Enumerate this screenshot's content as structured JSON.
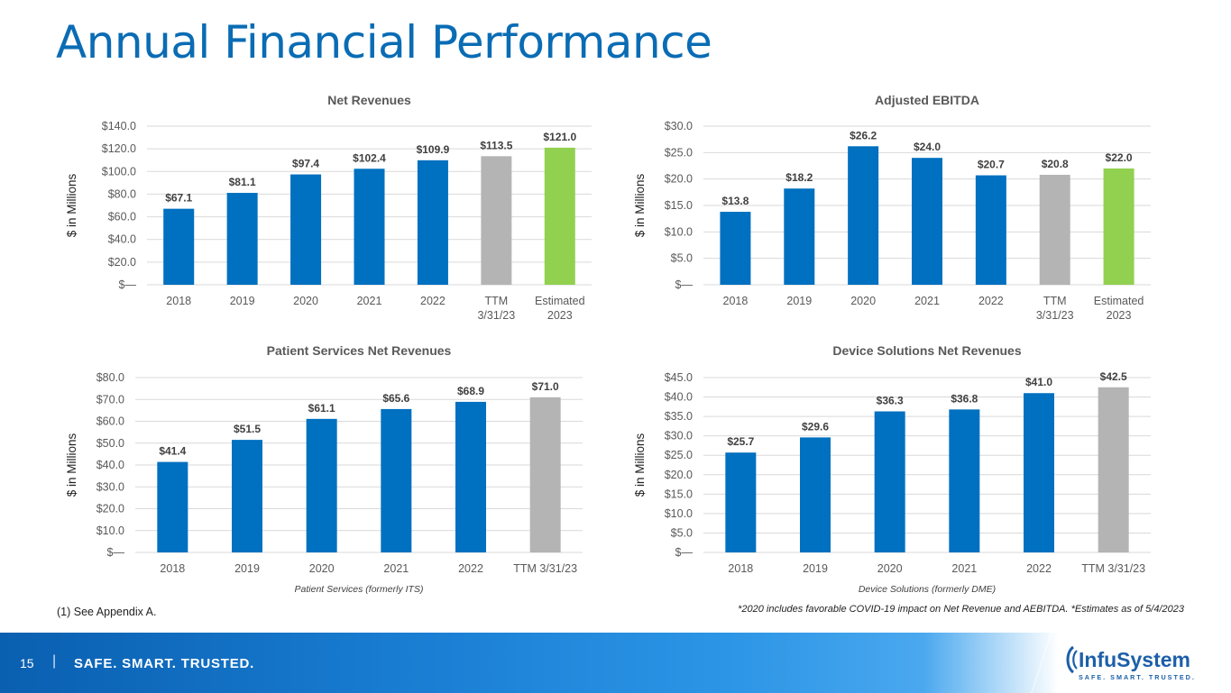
{
  "page": {
    "title": "Annual Financial Performance",
    "footnote_left": "(1) See Appendix A.",
    "footnote_right": "*2020 includes favorable COVID-19 impact on Net Revenue and AEBITDA.  *Estimates as of 5/4/2023",
    "footer": {
      "page_number": "15",
      "divider": "|",
      "slogan": "SAFE. SMART. TRUSTED."
    },
    "logo": {
      "brand": "InfuSystem",
      "tagline": "SAFE. SMART. TRUSTED.",
      "icon": "infusystem-logo-icon"
    }
  },
  "colors": {
    "blue": "#0070c0",
    "gray": "#b4b4b4",
    "green": "#92d050",
    "title_blue": "#0a6cb4"
  },
  "chart_data": [
    {
      "type": "bar",
      "title": "Net Revenues",
      "ylabel": "$ in Millions",
      "xnote": "",
      "categories": [
        [
          "2018"
        ],
        [
          "2019"
        ],
        [
          "2020"
        ],
        [
          "2021"
        ],
        [
          "2022"
        ],
        [
          "TTM",
          "3/31/23"
        ],
        [
          "Estimated",
          "2023"
        ]
      ],
      "values": [
        67.1,
        81.1,
        97.4,
        102.4,
        109.9,
        113.5,
        121.0
      ],
      "labels": [
        "$67.1",
        "$81.1",
        "$97.4",
        "$102.4",
        "$109.9",
        "$113.5",
        "$121.0"
      ],
      "bar_colors": [
        "blue",
        "blue",
        "blue",
        "blue",
        "blue",
        "gray",
        "green"
      ],
      "yticks": [
        0,
        20,
        40,
        60,
        80,
        100,
        120,
        140
      ],
      "ytick_labels": [
        "$—",
        "$20.0",
        "$40.0",
        "$60.0",
        "$80.0",
        "$100.0",
        "$120.0",
        "$140.0"
      ],
      "ylim": [
        0,
        140
      ],
      "grid": true
    },
    {
      "type": "bar",
      "title": "Adjusted EBITDA",
      "ylabel": "$ in Millions",
      "xnote": "",
      "categories": [
        [
          "2018"
        ],
        [
          "2019"
        ],
        [
          "2020"
        ],
        [
          "2021"
        ],
        [
          "2022"
        ],
        [
          "TTM",
          "3/31/23"
        ],
        [
          "Estimated",
          "2023"
        ]
      ],
      "values": [
        13.8,
        18.2,
        26.2,
        24.0,
        20.7,
        20.8,
        22.0
      ],
      "labels": [
        "$13.8",
        "$18.2",
        "$26.2",
        "$24.0",
        "$20.7",
        "$20.8",
        "$22.0"
      ],
      "bar_colors": [
        "blue",
        "blue",
        "blue",
        "blue",
        "blue",
        "gray",
        "green"
      ],
      "yticks": [
        0,
        5,
        10,
        15,
        20,
        25,
        30
      ],
      "ytick_labels": [
        "$—",
        "$5.0",
        "$10.0",
        "$15.0",
        "$20.0",
        "$25.0",
        "$30.0"
      ],
      "ylim": [
        0,
        30
      ],
      "grid": true
    },
    {
      "type": "bar",
      "title": "Patient Services Net Revenues",
      "ylabel": "$ in Millions",
      "xnote": "Patient Services (formerly ITS)",
      "categories": [
        [
          "2018"
        ],
        [
          "2019"
        ],
        [
          "2020"
        ],
        [
          "2021"
        ],
        [
          "2022"
        ],
        [
          "TTM 3/31/23"
        ]
      ],
      "values": [
        41.4,
        51.5,
        61.1,
        65.6,
        68.9,
        71.0
      ],
      "labels": [
        "$41.4",
        "$51.5",
        "$61.1",
        "$65.6",
        "$68.9",
        "$71.0"
      ],
      "bar_colors": [
        "blue",
        "blue",
        "blue",
        "blue",
        "blue",
        "gray"
      ],
      "yticks": [
        0,
        10,
        20,
        30,
        40,
        50,
        60,
        70,
        80
      ],
      "ytick_labels": [
        "$—",
        "$10.0",
        "$20.0",
        "$30.0",
        "$40.0",
        "$50.0",
        "$60.0",
        "$70.0",
        "$80.0"
      ],
      "ylim": [
        0,
        80
      ],
      "grid": true
    },
    {
      "type": "bar",
      "title": "Device Solutions Net Revenues",
      "ylabel": "$ in Millions",
      "xnote": "Device Solutions (formerly DME)",
      "categories": [
        [
          "2018"
        ],
        [
          "2019"
        ],
        [
          "2020"
        ],
        [
          "2021"
        ],
        [
          "2022"
        ],
        [
          "TTM 3/31/23"
        ]
      ],
      "values": [
        25.7,
        29.6,
        36.3,
        36.8,
        41.0,
        42.5
      ],
      "labels": [
        "$25.7",
        "$29.6",
        "$36.3",
        "$36.8",
        "$41.0",
        "$42.5"
      ],
      "bar_colors": [
        "blue",
        "blue",
        "blue",
        "blue",
        "blue",
        "gray"
      ],
      "yticks": [
        0,
        5,
        10,
        15,
        20,
        25,
        30,
        35,
        40,
        45
      ],
      "ytick_labels": [
        "$—",
        "$5.0",
        "$10.0",
        "$15.0",
        "$20.0",
        "$25.0",
        "$30.0",
        "$35.0",
        "$40.0",
        "$45.0"
      ],
      "ylim": [
        0,
        45
      ],
      "grid": true
    }
  ]
}
